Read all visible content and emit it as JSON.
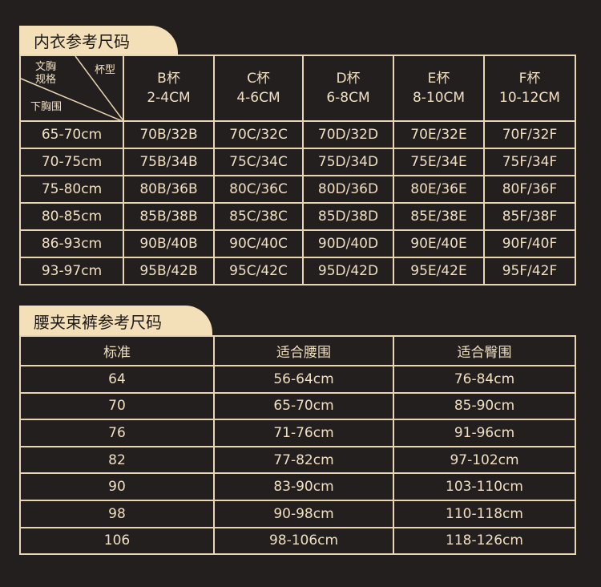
{
  "bra": {
    "title": "内衣参考尺码",
    "corner": {
      "top_left": "文胸\n规格",
      "top_right": "杯型",
      "bottom": "下胸围"
    },
    "cups": [
      {
        "name": "B杯",
        "range": "2-4CM"
      },
      {
        "name": "C杯",
        "range": "4-6CM"
      },
      {
        "name": "D杯",
        "range": "6-8CM"
      },
      {
        "name": "E杯",
        "range": "8-10CM"
      },
      {
        "name": "F杯",
        "range": "10-12CM"
      }
    ],
    "rows": [
      [
        "65-70cm",
        "70B/32B",
        "70C/32C",
        "70D/32D",
        "70E/32E",
        "70F/32F"
      ],
      [
        "70-75cm",
        "75B/34B",
        "75C/34C",
        "75D/34D",
        "75E/34E",
        "75F/34F"
      ],
      [
        "75-80cm",
        "80B/36B",
        "80C/36C",
        "80D/36D",
        "80E/36E",
        "80F/36F"
      ],
      [
        "80-85cm",
        "85B/38B",
        "85C/38C",
        "85D/38D",
        "85E/38E",
        "85F/38F"
      ],
      [
        "86-93cm",
        "90B/40B",
        "90C/40C",
        "90D/40D",
        "90E/40E",
        "90F/40F"
      ],
      [
        "93-97cm",
        "95B/42B",
        "95C/42C",
        "95D/42D",
        "95E/42E",
        "95F/42F"
      ]
    ]
  },
  "waist": {
    "title": "腰夹束裤参考尺码",
    "headers": [
      "标准",
      "适合腰围",
      "适合臀围"
    ],
    "rows": [
      [
        "64",
        "56-64cm",
        "76-84cm"
      ],
      [
        "70",
        "65-70cm",
        "85-90cm"
      ],
      [
        "76",
        "71-76cm",
        "91-96cm"
      ],
      [
        "82",
        "77-82cm",
        "97-102cm"
      ],
      [
        "90",
        "83-90cm",
        "103-110cm"
      ],
      [
        "98",
        "90-98cm",
        "110-118cm"
      ],
      [
        "106",
        "98-106cm",
        "118-126cm"
      ]
    ]
  }
}
